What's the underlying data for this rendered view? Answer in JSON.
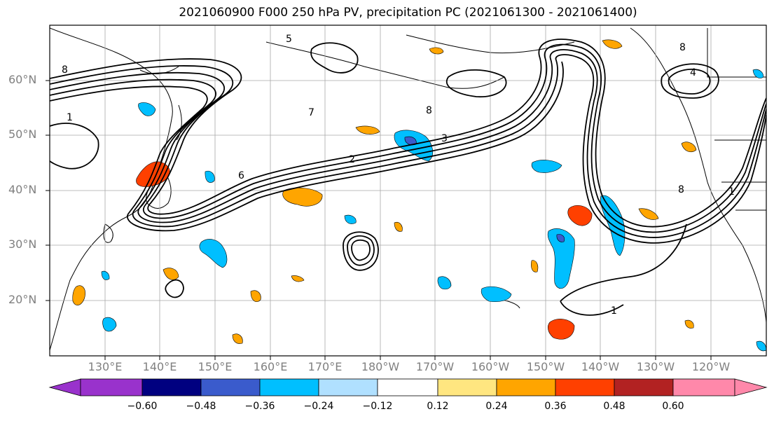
{
  "title": "2021060900 F000 250 hPa PV, precipitation PC (2021061300 - 2021061400)",
  "map": {
    "lat_labels": [
      "60°N",
      "50°N",
      "40°N",
      "30°N",
      "20°N"
    ],
    "lon_labels": [
      "130°E",
      "140°E",
      "150°E",
      "160°E",
      "170°E",
      "180°W",
      "170°W",
      "160°W",
      "150°W",
      "140°W",
      "130°W",
      "120°W"
    ],
    "contour_labels": [
      "1",
      "2",
      "3",
      "4",
      "5",
      "6",
      "7",
      "8"
    ]
  },
  "colorbar": {
    "ticks": [
      "−0.60",
      "−0.48",
      "−0.36",
      "−0.24",
      "−0.12",
      "0.12",
      "0.24",
      "0.36",
      "0.48",
      "0.60"
    ],
    "colors": [
      "#9932cc",
      "#000080",
      "#3a5bcc",
      "#00bfff",
      "#b0e0ff",
      "#ffffff",
      "#ffe680",
      "#ffa500",
      "#ff4000",
      "#b22222",
      "#ff88aa"
    ],
    "neg_color": "#00bfff",
    "pos_color": "#ffa500"
  }
}
